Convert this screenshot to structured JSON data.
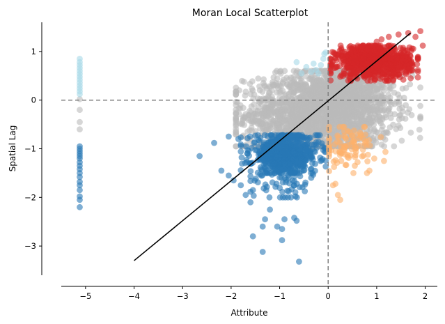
{
  "chart_data": {
    "type": "scatter",
    "title": "Moran Local Scatterplot",
    "xlabel": "Attribute",
    "ylabel": "Spatial Lag",
    "xlim": [
      -5.5,
      2.25
    ],
    "ylim": [
      -3.6,
      1.6
    ],
    "xticks": [
      -5,
      -4,
      -3,
      -2,
      -1,
      0,
      1,
      2
    ],
    "xtick_labels": [
      "−5",
      "−4",
      "−3",
      "−2",
      "−1",
      "0",
      "1",
      "2"
    ],
    "yticks": [
      -3,
      -2,
      -1,
      0,
      1
    ],
    "ytick_labels": [
      "−3",
      "−2",
      "−1",
      "0",
      "1"
    ],
    "grid": false,
    "spines": "left and bottom only, offset",
    "reference_lines": {
      "x": 0,
      "y": 0,
      "style": "dashed",
      "color": "#808080"
    },
    "fit_line": {
      "x": [
        -4.0,
        1.7
      ],
      "y": [
        -3.3,
        1.38
      ],
      "color": "#000000"
    },
    "colors": {
      "hh": "#d62728",
      "ll": "#2878b5",
      "lh": "#a6d8e7",
      "hl": "#fdb06b",
      "ns": "#bababa"
    },
    "series": [
      {
        "color_key": "ns",
        "clusters": [
          {
            "center": [
              -0.2,
              -0.3
            ],
            "spread": [
              0.75,
              0.42
            ],
            "n": 1800,
            "xrange": [
              -1.9,
              1.9
            ],
            "yrange": [
              -0.95,
              0.6
            ]
          },
          {
            "center": [
              0.3,
              0.15
            ],
            "spread": [
              0.5,
              0.3
            ],
            "n": 600,
            "xrange": [
              -1.0,
              1.75
            ],
            "yrange": [
              -0.6,
              0.6
            ]
          }
        ],
        "points": [
          [
            -5.12,
            0.02
          ],
          [
            -5.12,
            -0.2
          ],
          [
            -5.12,
            -0.45
          ],
          [
            -5.12,
            -0.6
          ]
        ]
      },
      {
        "color_key": "ll",
        "clusters": [
          {
            "center": [
              -0.9,
              -1.1
            ],
            "spread": [
              0.35,
              0.2
            ],
            "n": 650,
            "xrange": [
              -1.8,
              -0.05
            ],
            "yrange": [
              -1.5,
              -0.72
            ]
          },
          {
            "center": [
              -0.9,
              -1.6
            ],
            "spread": [
              0.35,
              0.25
            ],
            "n": 90,
            "xrange": [
              -1.6,
              -0.1
            ],
            "yrange": [
              -2.0,
              -1.3
            ]
          }
        ],
        "points": [
          [
            -5.12,
            -0.95
          ],
          [
            -5.12,
            -1.0
          ],
          [
            -5.12,
            -1.05
          ],
          [
            -5.12,
            -1.1
          ],
          [
            -5.12,
            -1.15
          ],
          [
            -5.12,
            -1.2
          ],
          [
            -5.12,
            -1.28
          ],
          [
            -5.12,
            -1.35
          ],
          [
            -5.12,
            -1.42
          ],
          [
            -5.12,
            -1.5
          ],
          [
            -5.12,
            -1.58
          ],
          [
            -5.12,
            -1.68
          ],
          [
            -5.12,
            -1.75
          ],
          [
            -5.12,
            -1.85
          ],
          [
            -5.12,
            -1.98
          ],
          [
            -5.12,
            -2.05
          ],
          [
            -5.12,
            -2.2
          ],
          [
            -2.65,
            -1.15
          ],
          [
            -2.35,
            -0.88
          ],
          [
            -2.2,
            -1.45
          ],
          [
            -2.05,
            -1.55
          ],
          [
            -1.95,
            -1.65
          ],
          [
            -1.8,
            -1.75
          ],
          [
            -1.55,
            -1.85
          ],
          [
            -1.7,
            -1.95
          ],
          [
            -1.6,
            -2.1
          ],
          [
            -1.2,
            -2.25
          ],
          [
            -1.3,
            -2.45
          ],
          [
            -1.35,
            -2.6
          ],
          [
            -0.9,
            -2.45
          ],
          [
            -1.05,
            -2.6
          ],
          [
            -0.95,
            -2.65
          ],
          [
            -1.55,
            -2.8
          ],
          [
            -0.95,
            -2.88
          ],
          [
            -1.35,
            -3.12
          ],
          [
            -0.6,
            -3.32
          ],
          [
            -0.7,
            -2.42
          ],
          [
            -0.65,
            -2.48
          ],
          [
            -2.05,
            -0.75
          ],
          [
            -1.85,
            -0.8
          ]
        ]
      },
      {
        "color_key": "lh",
        "clusters": [],
        "points": [
          [
            -5.12,
            0.85
          ],
          [
            -5.12,
            0.78
          ],
          [
            -5.12,
            0.72
          ],
          [
            -5.12,
            0.66
          ],
          [
            -5.12,
            0.6
          ],
          [
            -5.12,
            0.54
          ],
          [
            -5.12,
            0.48
          ],
          [
            -5.12,
            0.42
          ],
          [
            -5.12,
            0.36
          ],
          [
            -5.12,
            0.3
          ],
          [
            -5.12,
            0.24
          ],
          [
            -5.12,
            0.18
          ],
          [
            -5.12,
            0.12
          ],
          [
            -0.65,
            0.78
          ],
          [
            -0.45,
            0.68
          ],
          [
            -0.35,
            0.58
          ],
          [
            -0.25,
            0.62
          ],
          [
            -0.15,
            0.72
          ],
          [
            -0.08,
            0.95
          ],
          [
            -0.05,
            0.98
          ],
          [
            -0.2,
            0.55
          ],
          [
            -0.55,
            0.55
          ],
          [
            -0.1,
            0.85
          ],
          [
            -0.3,
            0.75
          ]
        ]
      },
      {
        "color_key": "hl",
        "clusters": [
          {
            "center": [
              0.4,
              -0.95
            ],
            "spread": [
              0.3,
              0.22
            ],
            "n": 95,
            "xrange": [
              0.02,
              1.3
            ],
            "yrange": [
              -1.5,
              -0.55
            ]
          }
        ],
        "points": [
          [
            0.1,
            -1.75
          ],
          [
            0.15,
            -1.72
          ],
          [
            0.2,
            -1.95
          ],
          [
            0.25,
            -2.05
          ],
          [
            0.8,
            -1.5
          ],
          [
            0.85,
            -1.45
          ],
          [
            1.15,
            -1.25
          ],
          [
            0.95,
            -1.2
          ],
          [
            0.55,
            -1.35
          ]
        ]
      },
      {
        "color_key": "hh",
        "clusters": [
          {
            "center": [
              0.95,
              0.8
            ],
            "spread": [
              0.38,
              0.16
            ],
            "n": 900,
            "xrange": [
              0.05,
              1.85
            ],
            "yrange": [
              0.4,
              1.12
            ]
          }
        ],
        "points": [
          [
            1.1,
            1.25
          ],
          [
            1.45,
            1.35
          ],
          [
            1.65,
            1.38
          ],
          [
            1.9,
            1.42
          ],
          [
            1.8,
            1.3
          ],
          [
            0.7,
            1.1
          ],
          [
            0.45,
            1.05
          ],
          [
            1.25,
            1.3
          ],
          [
            1.0,
            1.2
          ],
          [
            1.95,
            1.12
          ],
          [
            1.7,
            0.45
          ],
          [
            1.55,
            0.42
          ],
          [
            0.25,
            0.48
          ]
        ]
      }
    ]
  }
}
